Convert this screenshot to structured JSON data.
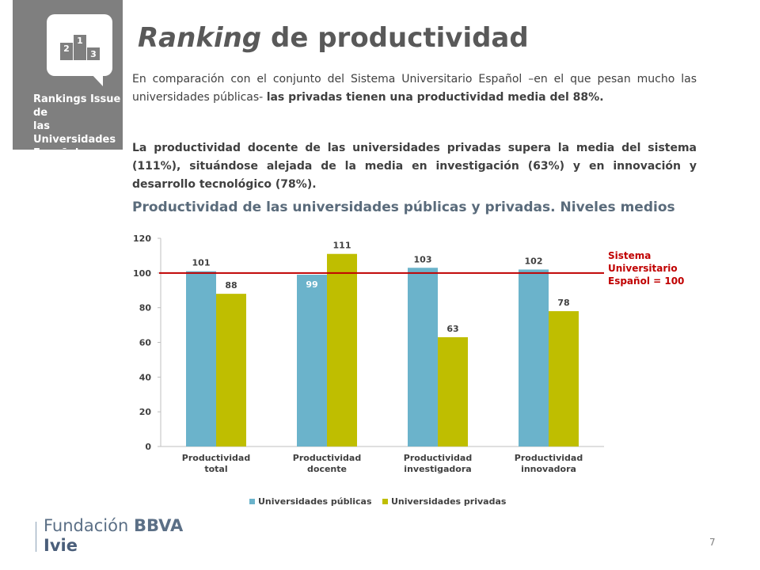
{
  "logo": {
    "lines": [
      "Rankings Issue de",
      "las Universidades",
      "Españolas"
    ],
    "podium": [
      "2",
      "1",
      "3"
    ],
    "bg_color": "#7f7f7f"
  },
  "title": {
    "emphasis": "Ranking",
    "rest": " de productividad"
  },
  "paragraph1": {
    "normal": "En comparación con el conjunto del Sistema Universitario Español –en el que pesan mucho las universidades públicas- ",
    "bold": "las privadas tienen una productividad media del 88%."
  },
  "paragraph2": "La productividad docente de las universidades privadas supera la media del sistema (111%), situándose alejada de la media en investigación (63%) y en innovación y desarrollo tecnológico (78%).",
  "chart_title": "Productividad de las universidades públicas y privadas. Niveles medios",
  "chart_data": {
    "type": "bar",
    "categories": [
      [
        "Productividad",
        "total"
      ],
      [
        "Productividad",
        "docente"
      ],
      [
        "Productividad",
        "investigadora"
      ],
      [
        "Productividad",
        "innovadora"
      ]
    ],
    "series": [
      {
        "name": "Universidades públicas",
        "color": "#6bb3cb",
        "values": [
          101,
          99,
          103,
          102
        ]
      },
      {
        "name": "Universidades privadas",
        "color": "#bfbe00",
        "values": [
          88,
          111,
          63,
          78
        ]
      }
    ],
    "yticks": [
      0,
      20,
      40,
      60,
      80,
      100,
      120
    ],
    "ylim": [
      0,
      120
    ],
    "reference": {
      "value": 100,
      "color": "#c00000",
      "label": [
        "Sistema",
        "Universitario",
        "Español = 100"
      ]
    },
    "legend_position": "bottom-center",
    "grid": false
  },
  "page_number": "7",
  "footer": {
    "brand_prefix": "Fundación ",
    "brand_bold": "BBVA",
    "sub": "Ivie"
  }
}
